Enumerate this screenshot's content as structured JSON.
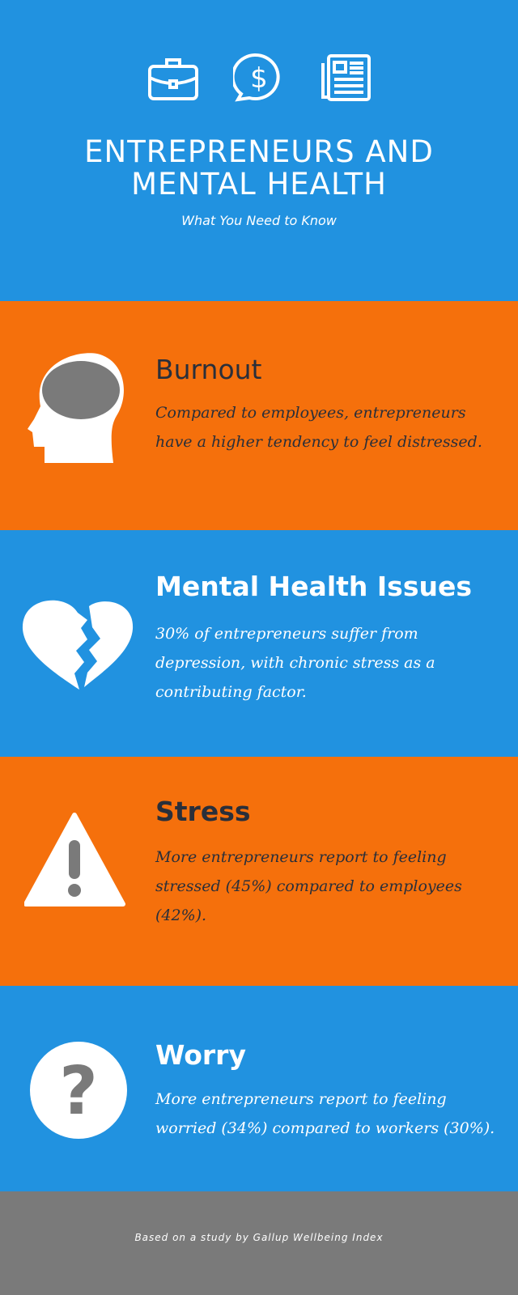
{
  "header": {
    "icons": [
      "briefcase-icon",
      "dollar-chat-icon",
      "newspaper-icon"
    ],
    "title_line1": "ENTREPRENEURS AND",
    "title_line2": "MENTAL HEALTH",
    "subtitle": "What You Need to Know"
  },
  "sections": [
    {
      "icon": "head-brain-icon",
      "heading": "Burnout",
      "text": "Compared to employees, entrepreneurs have a higher tendency to feel distressed."
    },
    {
      "icon": "broken-heart-icon",
      "heading": "Mental Health Issues",
      "text": "30% of entrepreneurs suffer from depression, with chronic stress as a contributing factor."
    },
    {
      "icon": "warning-icon",
      "heading": "Stress",
      "text": "More entrepreneurs report to feeling stressed (45%) compared to employees (42%)."
    },
    {
      "icon": "question-icon",
      "heading": "Worry",
      "text": "More entrepreneurs report to feeling worried (34%) compared to workers (30%)."
    }
  ],
  "footer": {
    "text": "Based on a study by Gallup Wellbeing Index"
  },
  "colors": {
    "blue": "#2192e0",
    "orange": "#f5700c",
    "gray": "#7a7a7a",
    "dark_text": "#2a2f3a"
  }
}
